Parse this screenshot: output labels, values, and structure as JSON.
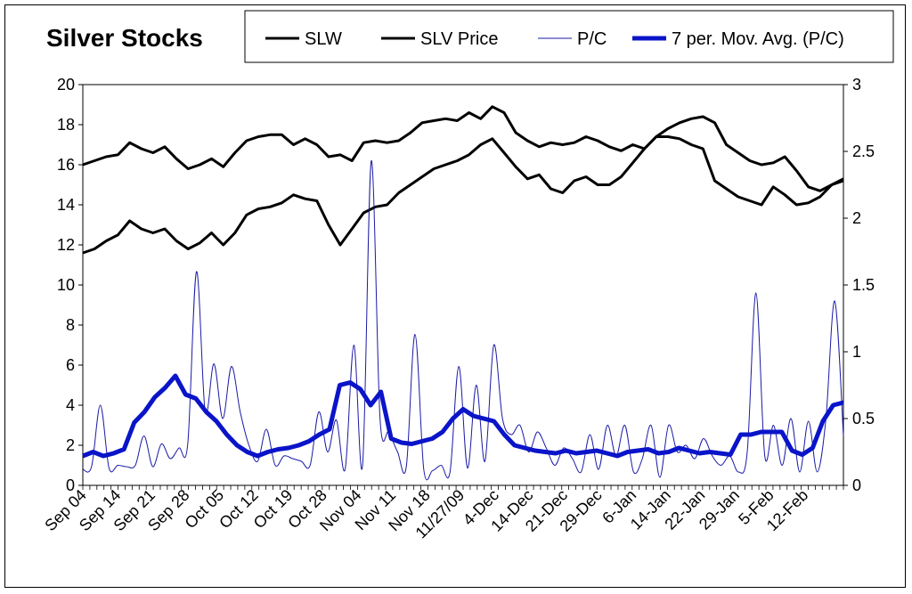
{
  "chart_data": {
    "type": "line",
    "title": "Silver Stocks",
    "x_tick_labels": [
      "Sep 04",
      "Sep 14",
      "Sep 21",
      "Sep 28",
      "Oct 05",
      "Oct 12",
      "Oct 19",
      "Oct 28",
      "Nov 04",
      "Nov 11",
      "Nov 18",
      "11/27/09",
      "4-Dec",
      "14-Dec",
      "21-Dec",
      "29-Dec",
      "6-Jan",
      "14-Jan",
      "22-Jan",
      "29-Jan",
      "5-Feb",
      "12-Feb"
    ],
    "y_left": {
      "lim": [
        0,
        20
      ],
      "ticks": [
        "0",
        "2",
        "4",
        "6",
        "8",
        "10",
        "12",
        "14",
        "16",
        "18",
        "20"
      ]
    },
    "y_right": {
      "lim": [
        0,
        3
      ],
      "ticks": [
        "0",
        "0.5",
        "1",
        "1.5",
        "2",
        "2.5",
        "3"
      ]
    },
    "legend_placement": "top-right",
    "grid": false,
    "series": [
      {
        "name": "SLW",
        "axis": "left",
        "color": "#000000",
        "style": "thick",
        "values": [
          16.0,
          16.2,
          16.4,
          16.5,
          17.1,
          16.8,
          16.6,
          16.9,
          16.3,
          15.8,
          16.0,
          16.3,
          15.9,
          16.6,
          17.2,
          17.4,
          17.5,
          17.5,
          17.0,
          17.3,
          17.0,
          16.4,
          16.5,
          16.2,
          17.1,
          17.2,
          17.1,
          17.2,
          17.6,
          18.1,
          18.2,
          18.3,
          18.2,
          18.6,
          18.3,
          18.9,
          18.6,
          17.6,
          17.2,
          16.9,
          17.1,
          17.0,
          17.1,
          17.4,
          17.2,
          16.9,
          16.7,
          17.0,
          16.8,
          17.4,
          17.8,
          18.1,
          18.3,
          18.4,
          18.1,
          17.0,
          16.6,
          16.2,
          16.0,
          16.1,
          16.4,
          15.7,
          14.9,
          14.7,
          15.0,
          15.3
        ]
      },
      {
        "name": "SLV Price",
        "axis": "left",
        "color": "#000000",
        "style": "thick",
        "values": [
          11.6,
          11.8,
          12.2,
          12.5,
          13.2,
          12.8,
          12.6,
          12.8,
          12.2,
          11.8,
          12.1,
          12.6,
          12.0,
          12.6,
          13.5,
          13.8,
          13.9,
          14.1,
          14.5,
          14.3,
          14.2,
          13.0,
          12.0,
          12.8,
          13.6,
          13.9,
          14.0,
          14.6,
          15.0,
          15.4,
          15.8,
          16.0,
          16.2,
          16.5,
          17.0,
          17.3,
          16.6,
          15.9,
          15.3,
          15.5,
          14.8,
          14.6,
          15.2,
          15.4,
          15.0,
          15.0,
          15.4,
          16.1,
          16.8,
          17.4,
          17.4,
          17.3,
          17.0,
          16.8,
          15.2,
          14.8,
          14.4,
          14.2,
          14.0,
          14.9,
          14.5,
          14.0,
          14.1,
          14.4,
          15.0,
          15.2
        ]
      },
      {
        "name": "P/C",
        "axis": "right",
        "color": "#1a1aa6",
        "style": "thin",
        "values": [
          0.12,
          0.14,
          0.6,
          0.13,
          0.15,
          0.14,
          0.15,
          0.37,
          0.14,
          0.31,
          0.2,
          0.28,
          0.31,
          1.6,
          0.55,
          0.91,
          0.5,
          0.89,
          0.55,
          0.3,
          0.18,
          0.42,
          0.15,
          0.22,
          0.2,
          0.18,
          0.15,
          0.55,
          0.25,
          0.49,
          0.12,
          1.05,
          0.15,
          2.43,
          0.5,
          0.4,
          0.25,
          0.14,
          1.13,
          0.12,
          0.11,
          0.15,
          0.1,
          0.89,
          0.13,
          0.75,
          0.18,
          1.05,
          0.5,
          0.38,
          0.45,
          0.25,
          0.4,
          0.28,
          0.15,
          0.28,
          0.2,
          0.1,
          0.38,
          0.12,
          0.45,
          0.22,
          0.45,
          0.1,
          0.2,
          0.45,
          0.06,
          0.45,
          0.25,
          0.3,
          0.2,
          0.35,
          0.22,
          0.15,
          0.22,
          0.1,
          0.25,
          1.44,
          0.22,
          0.45,
          0.15,
          0.5,
          0.1,
          0.48,
          0.1,
          0.5,
          1.38,
          0.37
        ]
      },
      {
        "name": "7 per. Mov. Avg. (P/C)",
        "axis": "right",
        "color": "#0a14c8",
        "style": "bold",
        "values": [
          0.22,
          0.25,
          0.22,
          0.24,
          0.27,
          0.47,
          0.55,
          0.66,
          0.73,
          0.82,
          0.68,
          0.65,
          0.55,
          0.48,
          0.38,
          0.3,
          0.25,
          0.22,
          0.25,
          0.27,
          0.28,
          0.3,
          0.33,
          0.38,
          0.42,
          0.75,
          0.77,
          0.72,
          0.6,
          0.7,
          0.35,
          0.32,
          0.31,
          0.33,
          0.35,
          0.4,
          0.5,
          0.57,
          0.52,
          0.5,
          0.48,
          0.38,
          0.3,
          0.28,
          0.26,
          0.25,
          0.24,
          0.26,
          0.24,
          0.25,
          0.26,
          0.24,
          0.22,
          0.25,
          0.26,
          0.27,
          0.24,
          0.25,
          0.28,
          0.26,
          0.24,
          0.25,
          0.24,
          0.23,
          0.38,
          0.38,
          0.4,
          0.4,
          0.4,
          0.26,
          0.23,
          0.28,
          0.48,
          0.6,
          0.62
        ]
      }
    ]
  }
}
